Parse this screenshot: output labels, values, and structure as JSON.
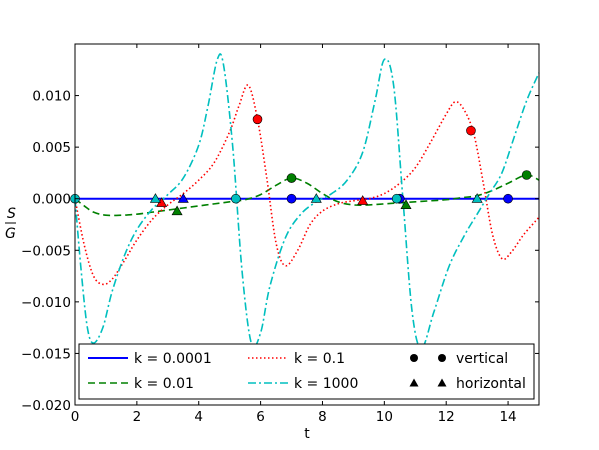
{
  "chart_data": {
    "type": "line",
    "xlabel": "t",
    "ylabel_num": "S",
    "ylabel_den": "G",
    "xlim": [
      0,
      15
    ],
    "ylim": [
      -0.02,
      0.015
    ],
    "xticks": [
      0,
      2,
      4,
      6,
      8,
      10,
      12,
      14
    ],
    "xtick_labels": [
      "0",
      "2",
      "4",
      "6",
      "8",
      "10",
      "12",
      "14"
    ],
    "yticks": [
      -0.02,
      -0.015,
      -0.01,
      -0.005,
      0.0,
      0.005,
      0.01
    ],
    "ytick_labels": [
      "−0.020",
      "−0.015",
      "−0.010",
      "−0.005",
      "0.000",
      "0.005",
      "0.010"
    ],
    "grid": false,
    "legend_placement": "bottom",
    "series": [
      {
        "name": "k = 0.0001",
        "color": "#0000ff",
        "style": "solid",
        "x": [
          0,
          15
        ],
        "y": [
          0.0,
          0.0
        ]
      },
      {
        "name": "k = 0.01",
        "color": "#008000",
        "style": "dashed",
        "x": [
          0,
          0.3,
          0.6,
          1.0,
          1.5,
          2.0,
          2.5,
          3.0,
          3.5,
          4.0,
          4.5,
          5.0,
          5.5,
          6.0,
          6.5,
          7.0,
          7.5,
          8.0,
          8.5,
          9.0,
          9.5,
          10.0,
          10.5,
          11.0,
          11.5,
          12.0,
          12.5,
          13.0,
          13.5,
          14.0,
          14.6,
          15.0
        ],
        "y": [
          0.0,
          -0.0007,
          -0.0013,
          -0.0016,
          -0.0016,
          -0.0015,
          -0.0013,
          -0.0011,
          -0.0009,
          -0.0007,
          -0.0005,
          -0.0003,
          -0.0001,
          0.0004,
          0.0013,
          0.002,
          0.0015,
          0.0005,
          -0.0003,
          -0.0006,
          -0.0006,
          -0.0005,
          -0.0004,
          -0.0003,
          -0.0002,
          -0.0001,
          0.0001,
          0.0003,
          0.0008,
          0.0015,
          0.0023,
          0.0018
        ]
      },
      {
        "name": "k = 0.1",
        "color": "#ff0000",
        "style": "dotted",
        "x": [
          0,
          0.3,
          0.6,
          0.9,
          1.2,
          1.6,
          2.0,
          2.5,
          3.0,
          3.5,
          4.0,
          4.5,
          5.0,
          5.3,
          5.6,
          5.9,
          6.2,
          6.5,
          6.8,
          7.2,
          7.6,
          8.0,
          8.5,
          9.0,
          9.5,
          10.0,
          10.5,
          11.0,
          11.5,
          12.0,
          12.3,
          12.6,
          12.9,
          13.2,
          13.5,
          13.8,
          14.1,
          14.5,
          15.0
        ],
        "y": [
          0.0,
          -0.0045,
          -0.0075,
          -0.0083,
          -0.0078,
          -0.006,
          -0.004,
          -0.002,
          -0.0006,
          0.0005,
          0.0018,
          0.0035,
          0.0065,
          0.009,
          0.011,
          0.0077,
          0.002,
          -0.0043,
          -0.0065,
          -0.005,
          -0.0025,
          -0.0012,
          -0.0005,
          -0.0002,
          0.0,
          0.0005,
          0.0015,
          0.003,
          0.0055,
          0.0082,
          0.0094,
          0.0085,
          0.0062,
          0.0015,
          -0.0035,
          -0.0058,
          -0.0052,
          -0.0035,
          -0.0018
        ]
      },
      {
        "name": "k = 1000",
        "color": "#00bfbf",
        "style": "dashdot",
        "x": [
          0,
          0.2,
          0.4,
          0.6,
          0.9,
          1.2,
          1.6,
          2.0,
          2.5,
          3.0,
          3.5,
          4.0,
          4.3,
          4.6,
          4.8,
          5.1,
          5.4,
          5.7,
          6.0,
          6.3,
          6.8,
          7.3,
          7.8,
          8.3,
          8.8,
          9.3,
          9.7,
          10.0,
          10.3,
          10.6,
          10.9,
          11.2,
          11.6,
          12.1,
          12.6,
          13.0,
          13.4,
          13.8,
          14.2,
          14.6,
          15.0
        ],
        "y": [
          0.0,
          -0.007,
          -0.0125,
          -0.014,
          -0.0125,
          -0.009,
          -0.0055,
          -0.003,
          -0.001,
          0.0004,
          0.002,
          0.0052,
          0.009,
          0.0135,
          0.013,
          0.005,
          -0.007,
          -0.014,
          -0.013,
          -0.0085,
          -0.0038,
          -0.0015,
          -0.0003,
          0.0005,
          0.0018,
          0.0045,
          0.0095,
          0.0135,
          0.011,
          0.0,
          -0.011,
          -0.0145,
          -0.011,
          -0.0065,
          -0.0035,
          -0.0015,
          0.0005,
          0.0025,
          0.006,
          0.0095,
          0.0122
        ]
      }
    ],
    "markers": [
      {
        "series": "k = 0.0001",
        "kind": "vertical",
        "x": 7.0,
        "y": 0.0,
        "color": "#0000ff"
      },
      {
        "series": "k = 0.0001",
        "kind": "vertical",
        "x": 10.5,
        "y": 0.0,
        "color": "#0000ff"
      },
      {
        "series": "k = 0.0001",
        "kind": "vertical",
        "x": 14.0,
        "y": 0.0,
        "color": "#0000ff"
      },
      {
        "series": "k = 0.0001",
        "kind": "horizontal",
        "x": 3.5,
        "y": 0.0,
        "color": "#0000ff"
      },
      {
        "series": "k = 0.01",
        "kind": "vertical",
        "x": 7.0,
        "y": 0.002,
        "color": "#008000"
      },
      {
        "series": "k = 0.01",
        "kind": "vertical",
        "x": 14.6,
        "y": 0.0023,
        "color": "#008000"
      },
      {
        "series": "k = 0.01",
        "kind": "horizontal",
        "x": 3.3,
        "y": -0.0012,
        "color": "#008000"
      },
      {
        "series": "k = 0.01",
        "kind": "horizontal",
        "x": 10.7,
        "y": -0.0006,
        "color": "#008000"
      },
      {
        "series": "k = 0.1",
        "kind": "vertical",
        "x": 5.9,
        "y": 0.0077,
        "color": "#ff0000"
      },
      {
        "series": "k = 0.1",
        "kind": "vertical",
        "x": 12.8,
        "y": 0.0066,
        "color": "#ff0000"
      },
      {
        "series": "k = 0.1",
        "kind": "horizontal",
        "x": 2.8,
        "y": -0.0004,
        "color": "#ff0000"
      },
      {
        "series": "k = 0.1",
        "kind": "horizontal",
        "x": 9.3,
        "y": -0.0002,
        "color": "#ff0000"
      },
      {
        "series": "k = 1000",
        "kind": "vertical",
        "x": 0.0,
        "y": 0.0,
        "color": "#00bfbf"
      },
      {
        "series": "k = 1000",
        "kind": "vertical",
        "x": 5.2,
        "y": 0.0,
        "color": "#00bfbf"
      },
      {
        "series": "k = 1000",
        "kind": "vertical",
        "x": 10.4,
        "y": 0.0,
        "color": "#00bfbf"
      },
      {
        "series": "k = 1000",
        "kind": "horizontal",
        "x": 2.6,
        "y": 0.0,
        "color": "#00bfbf"
      },
      {
        "series": "k = 1000",
        "kind": "horizontal",
        "x": 7.8,
        "y": 0.0,
        "color": "#00bfbf"
      },
      {
        "series": "k = 1000",
        "kind": "horizontal",
        "x": 13.0,
        "y": 0.0,
        "color": "#00bfbf"
      }
    ],
    "legend": {
      "entries": [
        {
          "label": "k = 0.0001",
          "kind": "line",
          "color": "#0000ff",
          "style": "solid"
        },
        {
          "label": "k = 0.01",
          "kind": "line",
          "color": "#008000",
          "style": "dashed"
        },
        {
          "label": "k = 0.1",
          "kind": "line",
          "color": "#ff0000",
          "style": "dotted"
        },
        {
          "label": "k = 1000",
          "kind": "line",
          "color": "#00bfbf",
          "style": "dashdot"
        },
        {
          "label": "vertical",
          "kind": "circle",
          "color": "#000000"
        },
        {
          "label": "horizontal",
          "kind": "triangle",
          "color": "#000000"
        }
      ]
    }
  }
}
